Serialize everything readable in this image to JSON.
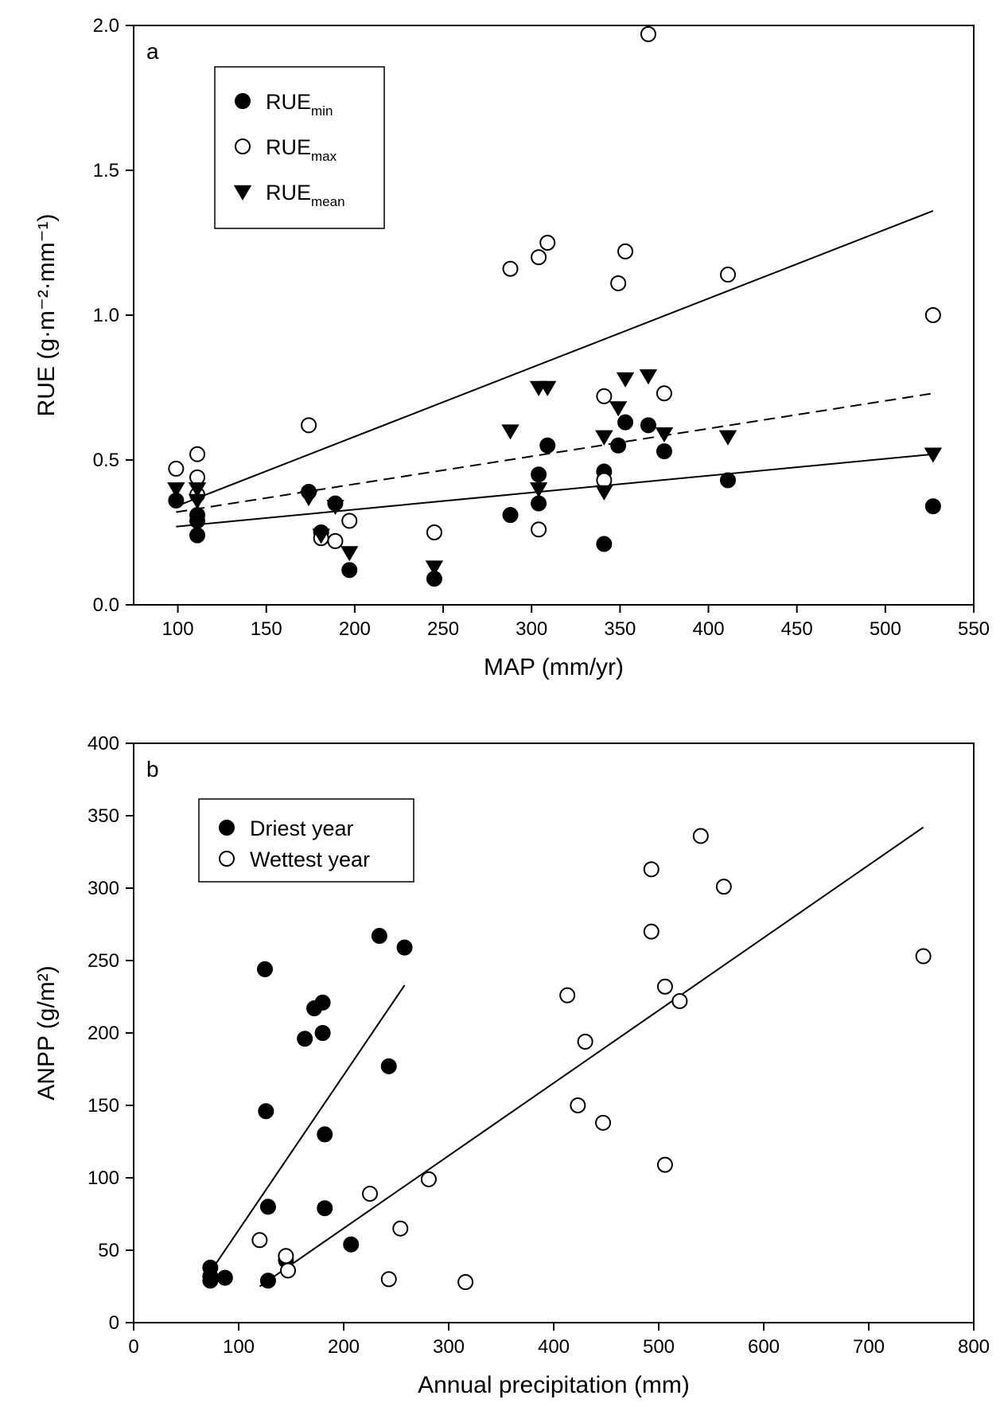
{
  "chart_data": [
    {
      "type": "scatter",
      "panel_label": "a",
      "xlabel": "MAP (mm/yr)",
      "ylabel": "RUE (g·m⁻²·mm⁻¹)",
      "xlim": [
        75,
        550
      ],
      "ylim": [
        0,
        2.0
      ],
      "xticks": [
        100,
        150,
        200,
        250,
        300,
        350,
        400,
        450,
        500,
        550
      ],
      "xtick_labels": [
        "100",
        "150",
        "200",
        "250",
        "300",
        "350",
        "400",
        "450",
        "500",
        "550"
      ],
      "yticks": [
        0,
        0.5,
        1.0,
        1.5,
        2.0
      ],
      "ytick_labels": [
        "0.0",
        "0.5",
        "1.0",
        "1.5",
        "2.0"
      ],
      "legend_position": "top-left",
      "series": [
        {
          "name_base": "RUE",
          "name_sub": "min",
          "marker": "filled-circle",
          "points": [
            [
              99,
              0.36
            ],
            [
              111,
              0.31
            ],
            [
              111,
              0.29
            ],
            [
              111,
              0.24
            ],
            [
              174,
              0.39
            ],
            [
              181,
              0.25
            ],
            [
              189,
              0.35
            ],
            [
              197,
              0.12
            ],
            [
              245,
              0.09
            ],
            [
              288,
              0.31
            ],
            [
              304,
              0.45
            ],
            [
              304,
              0.35
            ],
            [
              309,
              0.55
            ],
            [
              341,
              0.46
            ],
            [
              341,
              0.21
            ],
            [
              349,
              0.55
            ],
            [
              353,
              0.63
            ],
            [
              366,
              0.62
            ],
            [
              375,
              0.53
            ],
            [
              411,
              0.43
            ],
            [
              527,
              0.34
            ]
          ]
        },
        {
          "name_base": "RUE",
          "name_sub": "max",
          "marker": "open-circle",
          "points": [
            [
              99,
              0.47
            ],
            [
              111,
              0.52
            ],
            [
              111,
              0.44
            ],
            [
              111,
              0.38
            ],
            [
              174,
              0.62
            ],
            [
              181,
              0.23
            ],
            [
              189,
              0.22
            ],
            [
              197,
              0.29
            ],
            [
              245,
              0.25
            ],
            [
              288,
              1.16
            ],
            [
              304,
              1.2
            ],
            [
              304,
              0.26
            ],
            [
              309,
              1.25
            ],
            [
              341,
              0.72
            ],
            [
              341,
              0.43
            ],
            [
              349,
              1.11
            ],
            [
              353,
              1.22
            ],
            [
              366,
              1.97
            ],
            [
              375,
              0.73
            ],
            [
              411,
              1.14
            ],
            [
              527,
              1.0
            ]
          ]
        },
        {
          "name_base": "RUE",
          "name_sub": "mean",
          "marker": "filled-triangle-down",
          "points": [
            [
              99,
              0.4
            ],
            [
              111,
              0.4
            ],
            [
              111,
              0.36
            ],
            [
              174,
              0.37
            ],
            [
              181,
              0.24
            ],
            [
              189,
              0.34
            ],
            [
              197,
              0.18
            ],
            [
              245,
              0.13
            ],
            [
              288,
              0.6
            ],
            [
              304,
              0.75
            ],
            [
              304,
              0.4
            ],
            [
              309,
              0.75
            ],
            [
              341,
              0.58
            ],
            [
              341,
              0.39
            ],
            [
              349,
              0.68
            ],
            [
              353,
              0.78
            ],
            [
              366,
              0.79
            ],
            [
              375,
              0.59
            ],
            [
              411,
              0.58
            ],
            [
              527,
              0.52
            ]
          ]
        }
      ],
      "fit_lines": [
        {
          "series": "max",
          "style": "solid",
          "x": [
            99,
            527
          ],
          "y": [
            0.34,
            1.36
          ]
        },
        {
          "series": "mean",
          "style": "dashed",
          "x": [
            99,
            527
          ],
          "y": [
            0.32,
            0.73
          ]
        },
        {
          "series": "min",
          "style": "solid",
          "x": [
            99,
            527
          ],
          "y": [
            0.27,
            0.52
          ]
        }
      ]
    },
    {
      "type": "scatter",
      "panel_label": "b",
      "xlabel": "Annual precipitation (mm)",
      "ylabel": "ANPP (g/m²)",
      "xlim": [
        0,
        800
      ],
      "ylim": [
        0,
        400
      ],
      "xticks": [
        0,
        100,
        200,
        300,
        400,
        500,
        600,
        700,
        800
      ],
      "xtick_labels": [
        "0",
        "100",
        "200",
        "300",
        "400",
        "500",
        "600",
        "700",
        "800"
      ],
      "yticks": [
        0,
        50,
        100,
        150,
        200,
        250,
        300,
        350,
        400
      ],
      "ytick_labels": [
        "0",
        "50",
        "100",
        "150",
        "200",
        "250",
        "300",
        "350",
        "400"
      ],
      "legend_position": "top-left",
      "series": [
        {
          "name": "Driest year",
          "marker": "filled-circle",
          "points": [
            [
              73,
              38
            ],
            [
              73,
              32
            ],
            [
              73,
              29
            ],
            [
              87,
              31
            ],
            [
              125,
              244
            ],
            [
              126,
              146
            ],
            [
              128,
              80
            ],
            [
              128,
              29
            ],
            [
              145,
              43
            ],
            [
              163,
              196
            ],
            [
              172,
              217
            ],
            [
              180,
              221
            ],
            [
              180,
              200
            ],
            [
              182,
              130
            ],
            [
              182,
              79
            ],
            [
              207,
              54
            ],
            [
              234,
              267
            ],
            [
              243,
              177
            ],
            [
              258,
              259
            ]
          ]
        },
        {
          "name": "Wettest year",
          "marker": "open-circle",
          "points": [
            [
              120,
              57
            ],
            [
              145,
              46
            ],
            [
              147,
              36
            ],
            [
              225,
              89
            ],
            [
              243,
              30
            ],
            [
              254,
              65
            ],
            [
              281,
              99
            ],
            [
              316,
              28
            ],
            [
              413,
              226
            ],
            [
              423,
              150
            ],
            [
              430,
              194
            ],
            [
              447,
              138
            ],
            [
              493,
              313
            ],
            [
              493,
              270
            ],
            [
              506,
              232
            ],
            [
              506,
              109
            ],
            [
              520,
              222
            ],
            [
              540,
              336
            ],
            [
              562,
              301
            ],
            [
              752,
              253
            ]
          ]
        }
      ],
      "fit_lines": [
        {
          "series": "Driest year",
          "style": "solid",
          "x": [
            73,
            258
          ],
          "y": [
            35,
            233
          ]
        },
        {
          "series": "Wettest year",
          "style": "solid",
          "x": [
            120,
            752
          ],
          "y": [
            25,
            342
          ]
        }
      ]
    }
  ]
}
